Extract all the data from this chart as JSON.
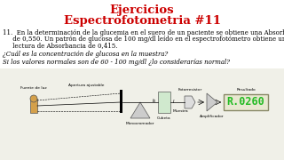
{
  "title_line1": "Ejercicios",
  "title_line2": "Espectrofotometria #11",
  "title_color": "#cc0000",
  "title_fontsize": 9.5,
  "bg_color": "#ffffff",
  "problem_text_1": "11.  En la determinación de la glucemia en el suero de un paciente se obtiene una Absorbancia",
  "problem_text_2": "     de 0,550. Un patrón de glucosa de 100 mg/dl leído en el espectrofotómetro obtiene una",
  "problem_text_3": "     lectura de Absorbancia de 0,415.",
  "question1": "¿Cuál es la concentración de glucosa en la muestra?",
  "question2": "Si los valores normales son de 60 - 100 mg/dl ¿lo considerarías normal?",
  "text_fontsize": 5.0,
  "diagram_labels": {
    "source": "Fuente de luz",
    "aperture": "Apertura ajustable",
    "mono": "Monocromador",
    "cubeta": "Cubeta",
    "foto": "Fotorresistor",
    "muestra": "Muestra",
    "amp": "Amplificador",
    "resultado": "Resultado"
  },
  "display_value": "R.0260",
  "display_color": "#22bb22",
  "display_bg": "#e8e8d0",
  "display_border": "#888866",
  "diagram_bg": "#f0f0e8"
}
